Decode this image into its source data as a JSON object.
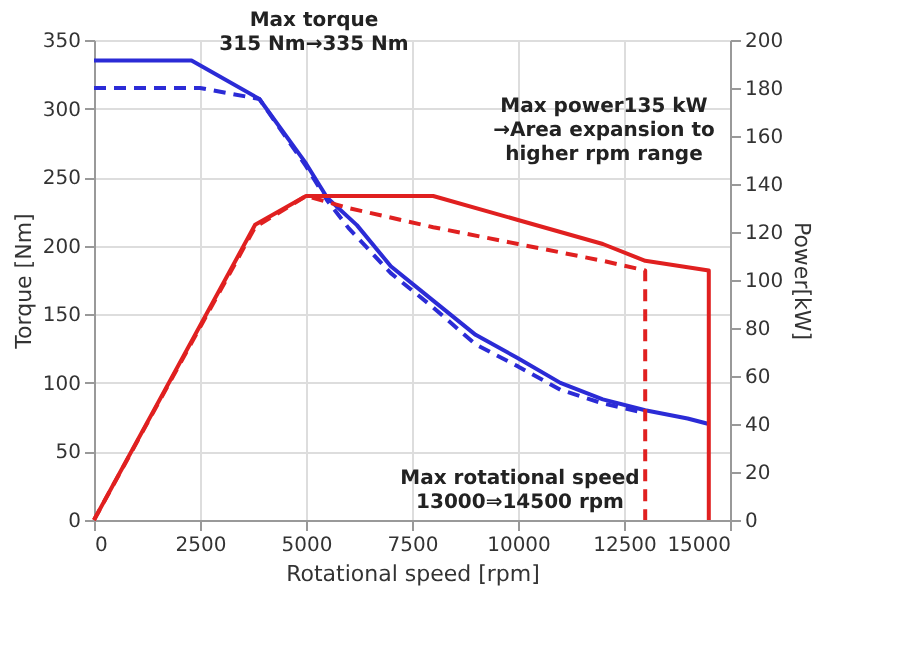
{
  "chart_data": {
    "type": "line",
    "xlabel": "Rotational speed [rpm]",
    "ylabel": "Torque [Nm]",
    "y2label": "Power[kW]",
    "xlim": [
      0,
      15000
    ],
    "xticks": [
      0,
      2500,
      5000,
      7500,
      10000,
      12500,
      15000
    ],
    "ylim": [
      0,
      350
    ],
    "yticks": [
      0,
      50,
      100,
      150,
      200,
      250,
      300,
      350
    ],
    "y2lim": [
      0,
      200
    ],
    "y2ticks": [
      0,
      20,
      40,
      60,
      80,
      100,
      120,
      140,
      160,
      180,
      200
    ],
    "grid": true,
    "marker": "none",
    "series": [
      {
        "color": "#2b2bd6",
        "line_style": "solid",
        "x": [
          0,
          2300,
          3900,
          5000,
          5500,
          6200,
          7000,
          8000,
          9000,
          10000,
          11000,
          12000,
          13000,
          14000,
          14500
        ],
        "values": [
          335,
          335,
          307,
          260,
          235,
          215,
          185,
          160,
          135,
          118,
          100,
          88,
          80,
          74,
          70
        ]
      },
      {
        "color": "#2b2bd6",
        "line_style": "dashed",
        "x": [
          0,
          2500,
          3900,
          5000,
          5500,
          6000,
          7000,
          8000,
          9000,
          10000,
          11000,
          12000,
          13000
        ],
        "values": [
          315,
          315,
          307,
          258,
          233,
          213,
          180,
          155,
          128,
          112,
          95,
          85,
          78
        ]
      },
      {
        "color": "#e02020",
        "line_style": "solid",
        "axis": "y2",
        "x": [
          0,
          3800,
          5000,
          8000,
          10000,
          12000,
          13000,
          14500,
          14500
        ],
        "values": [
          0,
          123,
          135,
          135,
          125,
          115,
          108,
          104,
          0
        ]
      },
      {
        "color": "#e02020",
        "line_style": "dashed",
        "axis": "y2",
        "x": [
          0,
          3800,
          5000,
          6000,
          8000,
          10000,
          12000,
          13000,
          13000
        ],
        "values": [
          0,
          122,
          135,
          130,
          122,
          115,
          108,
          104,
          0
        ]
      }
    ],
    "annotations": [
      "Max torque\n315 Nm→335 Nm",
      "Max power135 kW\n→Area expansion to\nhigher rpm range",
      "Max rotational speed\n13000⇒14500 rpm"
    ]
  }
}
